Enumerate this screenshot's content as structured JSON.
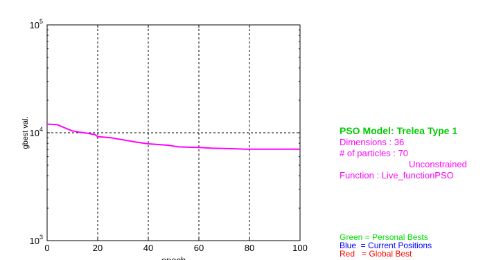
{
  "chart_data": {
    "type": "line",
    "xlabel": "epoch",
    "ylabel": "gbest val.",
    "xlim": [
      0,
      100
    ],
    "ylim": [
      1000,
      100000
    ],
    "yscale": "log",
    "grid": "dashed",
    "xticks": [
      "0",
      "20",
      "40",
      "60",
      "80",
      "100"
    ],
    "yticks": [
      {
        "base": "10",
        "exp": "3",
        "value": 1000
      },
      {
        "base": "10",
        "exp": "4",
        "value": 10000
      },
      {
        "base": "10",
        "exp": "5",
        "value": 100000
      }
    ],
    "series": [
      {
        "color": "#ff00ff",
        "x": [
          0,
          4,
          7,
          10,
          13,
          16,
          19,
          20,
          25,
          30,
          35,
          40,
          43,
          48,
          52,
          56,
          60,
          65,
          70,
          75,
          78,
          80,
          85,
          90,
          95,
          100
        ],
        "y": [
          12000,
          11900,
          11100,
          10400,
          10100,
          9900,
          9600,
          9200,
          9000,
          8600,
          8200,
          7900,
          7800,
          7650,
          7400,
          7350,
          7300,
          7200,
          7150,
          7100,
          7050,
          7050,
          7050,
          7050,
          7050,
          7050
        ]
      }
    ]
  },
  "info": {
    "title": "PSO Model: Trelea Type 1",
    "dimensions": "Dimensions : 36",
    "particles": "# of particles : 70",
    "constraint": "Unconstrained",
    "function": "Function : Live_functionPSO"
  },
  "legend": {
    "green": "Green = Personal Bests",
    "blue": "Blue  = Current Positions",
    "red": "Red   = Global Best"
  },
  "colors": {
    "line": "#ff00ff",
    "title": "#00cc00",
    "info": "#ff00ff",
    "green": "#00dd00",
    "blue": "#0000ff",
    "red": "#ff0000"
  }
}
